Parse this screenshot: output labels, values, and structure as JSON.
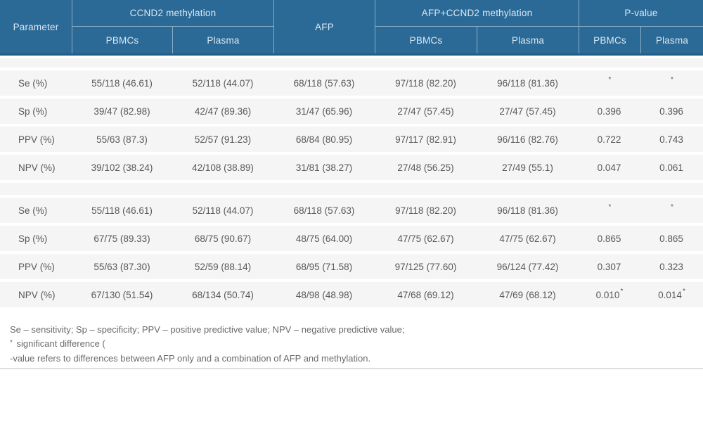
{
  "table": {
    "header": {
      "parameter": "Parameter",
      "group1": "CCND2 methylation",
      "afp": "AFP",
      "group2": "AFP+CCND2 methylation",
      "group3": "P-value",
      "sub_pbmcs": "PBMCs",
      "sub_plasma": "Plasma"
    },
    "rows": [
      {
        "param": "Se (%)",
        "c": [
          "55/118 (46.61)",
          "52/118 (44.07)",
          "68/118 (57.63)",
          "97/118 (82.20)",
          "96/118 (81.36)"
        ],
        "p1": "",
        "p1s": "*",
        "p2": "",
        "p2s": "*"
      },
      {
        "param": "Sp (%)",
        "c": [
          "39/47 (82.98)",
          "42/47 (89.36)",
          "31/47 (65.96)",
          "27/47 (57.45)",
          "27/47 (57.45)"
        ],
        "p1": "0.396",
        "p1s": "",
        "p2": "0.396",
        "p2s": ""
      },
      {
        "param": "PPV (%)",
        "c": [
          "55/63 (87.3)",
          "52/57 (91.23)",
          "68/84 (80.95)",
          "97/117 (82.91)",
          "96/116 (82.76)"
        ],
        "p1": "0.722",
        "p1s": "",
        "p2": "0.743",
        "p2s": ""
      },
      {
        "param": "NPV (%)",
        "c": [
          "39/102 (38.24)",
          "42/108 (38.89)",
          "31/81 (38.27)",
          "27/48 (56.25)",
          "27/49 (55.1)"
        ],
        "p1": "0.047",
        "p1s": "",
        "p2": "0.061",
        "p2s": ""
      },
      {
        "param": "Se (%)",
        "c": [
          "55/118 (46.61)",
          "52/118 (44.07)",
          "68/118 (57.63)",
          "97/118 (82.20)",
          "96/118 (81.36)"
        ],
        "p1": "",
        "p1s": "*",
        "p2": "",
        "p2s": "*"
      },
      {
        "param": "Sp (%)",
        "c": [
          "67/75 (89.33)",
          "68/75 (90.67)",
          "48/75 (64.00)",
          "47/75 (62.67)",
          "47/75 (62.67)"
        ],
        "p1": "0.865",
        "p1s": "",
        "p2": "0.865",
        "p2s": ""
      },
      {
        "param": "PPV (%)",
        "c": [
          "55/63 (87.30)",
          "52/59 (88.14)",
          "68/95 (71.58)",
          "97/125 (77.60)",
          "96/124 (77.42)"
        ],
        "p1": "0.307",
        "p1s": "",
        "p2": "0.323",
        "p2s": ""
      },
      {
        "param": "NPV (%)",
        "c": [
          "67/130 (51.54)",
          "68/134 (50.74)",
          "48/98 (48.98)",
          "47/68 (69.12)",
          "47/69 (68.12)"
        ],
        "p1": "0.010",
        "p1s": "*",
        "p2": "0.014",
        "p2s": "*"
      }
    ]
  },
  "footnotes": {
    "line1": "Se – sensitivity; Sp – specificity; PPV – positive predictive value; NPV – negative predictive value;",
    "line2_sup": "*",
    "line2": " significant difference (",
    "line3": "-value refers to differences between AFP only and a combination of AFP and methylation."
  }
}
